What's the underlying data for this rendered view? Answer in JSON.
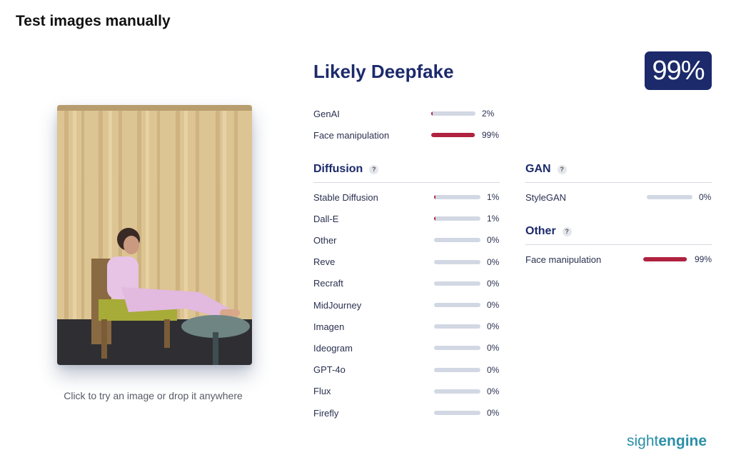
{
  "page": {
    "title": "Test images manually"
  },
  "upload": {
    "hint": "Click to try an image or drop it anywhere"
  },
  "result": {
    "verdict": "Likely Deepfake",
    "score": "99%"
  },
  "summary": [
    {
      "label": "GenAI",
      "value": 0.02,
      "text": "2%"
    },
    {
      "label": "Face manipulation",
      "value": 0.99,
      "text": "99%"
    }
  ],
  "diffusion": {
    "title": "Diffusion",
    "help": "?",
    "items": [
      {
        "label": "Stable Diffusion",
        "value": 0.01,
        "text": "1%"
      },
      {
        "label": "Dall-E",
        "value": 0.01,
        "text": "1%"
      },
      {
        "label": "Other",
        "value": 0,
        "text": "0%"
      },
      {
        "label": "Reve",
        "value": 0,
        "text": "0%"
      },
      {
        "label": "Recraft",
        "value": 0,
        "text": "0%"
      },
      {
        "label": "MidJourney",
        "value": 0,
        "text": "0%"
      },
      {
        "label": "Imagen",
        "value": 0,
        "text": "0%"
      },
      {
        "label": "Ideogram",
        "value": 0,
        "text": "0%"
      },
      {
        "label": "GPT-4o",
        "value": 0,
        "text": "0%"
      },
      {
        "label": "Flux",
        "value": 0,
        "text": "0%"
      },
      {
        "label": "Firefly",
        "value": 0,
        "text": "0%"
      }
    ]
  },
  "gan": {
    "title": "GAN",
    "help": "?",
    "items": [
      {
        "label": "StyleGAN",
        "value": 0,
        "text": "0%"
      }
    ]
  },
  "other": {
    "title": "Other",
    "help": "?",
    "items": [
      {
        "label": "Face manipulation",
        "value": 0.99,
        "text": "99%"
      }
    ]
  },
  "brand": {
    "part1": "sight",
    "part2": "engine"
  },
  "colors": {
    "accent": "#1c2a6b",
    "bar_fill": "#b0223f",
    "bar_track": "#d2d8e3",
    "brand": "#2a8fa8"
  }
}
